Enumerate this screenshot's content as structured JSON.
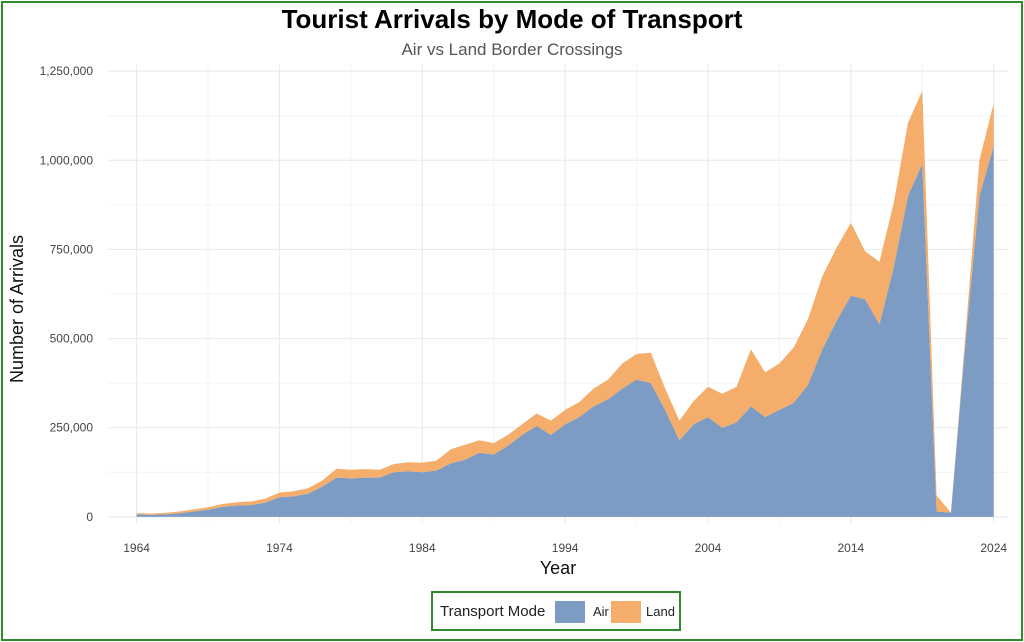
{
  "chart_data": {
    "type": "area",
    "stacked": true,
    "title": "Tourist Arrivals by Mode of Transport",
    "subtitle": "Air vs Land Border Crossings",
    "xlabel": "Year",
    "ylabel": "Number of Arrivals",
    "xlim": [
      1962,
      2025
    ],
    "ylim": [
      -20000,
      1270000
    ],
    "x_ticks": [
      1964,
      1974,
      1984,
      1994,
      2004,
      2014,
      2024
    ],
    "y_ticks": [
      0,
      250000,
      500000,
      750000,
      1000000,
      1250000
    ],
    "y_tick_labels": [
      "0",
      "250,000",
      "500,000",
      "750,000",
      "1,000,000",
      "1,250,000"
    ],
    "grid": true,
    "legend": {
      "title": "Transport Mode",
      "position": "bottom"
    },
    "x": [
      1964,
      1965,
      1966,
      1967,
      1968,
      1969,
      1970,
      1971,
      1972,
      1973,
      1974,
      1975,
      1976,
      1977,
      1978,
      1979,
      1980,
      1981,
      1982,
      1983,
      1984,
      1985,
      1986,
      1987,
      1988,
      1989,
      1990,
      1991,
      1992,
      1993,
      1994,
      1995,
      1996,
      1997,
      1998,
      1999,
      2000,
      2001,
      2002,
      2003,
      2004,
      2005,
      2006,
      2007,
      2008,
      2009,
      2010,
      2011,
      2012,
      2013,
      2014,
      2015,
      2016,
      2017,
      2018,
      2019,
      2020,
      2021,
      2022,
      2023,
      2024
    ],
    "series": [
      {
        "name": "Air",
        "color": "#7d9cc3",
        "values": [
          7000,
          6000,
          7000,
          10000,
          15000,
          20000,
          28000,
          32000,
          33000,
          40000,
          55000,
          58000,
          65000,
          85000,
          110000,
          108000,
          110000,
          110000,
          125000,
          128000,
          125000,
          130000,
          150000,
          160000,
          180000,
          175000,
          200000,
          230000,
          255000,
          230000,
          260000,
          280000,
          310000,
          330000,
          360000,
          385000,
          375000,
          300000,
          215000,
          260000,
          280000,
          250000,
          265000,
          310000,
          280000,
          300000,
          320000,
          370000,
          470000,
          550000,
          620000,
          610000,
          540000,
          700000,
          900000,
          990000,
          15000,
          12000,
          480000,
          900000,
          1040000
        ]
      },
      {
        "name": "Land",
        "color": "#f5ad6b",
        "values": [
          3000,
          3500,
          4000,
          5000,
          6000,
          7000,
          8000,
          9000,
          10000,
          11000,
          13000,
          14000,
          15000,
          17000,
          25000,
          24000,
          24000,
          22000,
          23000,
          25000,
          27000,
          28000,
          40000,
          42000,
          35000,
          32000,
          30000,
          30000,
          35000,
          40000,
          40000,
          42000,
          50000,
          55000,
          70000,
          72000,
          85000,
          60000,
          55000,
          65000,
          85000,
          95000,
          100000,
          160000,
          125000,
          130000,
          155000,
          185000,
          205000,
          205000,
          205000,
          135000,
          175000,
          180000,
          205000,
          205000,
          45000,
          0,
          20000,
          100000,
          120000
        ]
      }
    ]
  }
}
